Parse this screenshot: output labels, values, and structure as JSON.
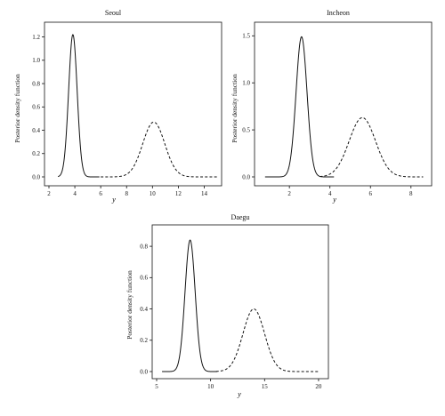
{
  "chart_data": [
    {
      "type": "line",
      "title": "Seoul",
      "xlabel": "y",
      "ylabel": "Posterior density function",
      "xlim": [
        2,
        15
      ],
      "ylim": [
        0,
        1.25
      ],
      "xticks": [
        2,
        4,
        6,
        8,
        10,
        12,
        14
      ],
      "yticks": [
        0.0,
        0.2,
        0.4,
        0.6,
        0.8,
        1.0,
        1.2
      ],
      "yticklabels": [
        "0.0",
        "0.2",
        "0.4",
        "0.6",
        "0.8",
        "1.0",
        "1.2"
      ],
      "series": [
        {
          "style": "solid",
          "curve": "normal",
          "peak_x": 3.85,
          "peak_y": 1.22,
          "sd": 0.33,
          "x_range": [
            2.7,
            5.9
          ]
        },
        {
          "style": "dashed",
          "curve": "normal",
          "peak_x": 10.1,
          "peak_y": 0.47,
          "sd": 0.85,
          "x_range": [
            6.0,
            15.0
          ]
        }
      ],
      "grid": false
    },
    {
      "type": "line",
      "title": "Incheon",
      "xlabel": "y",
      "ylabel": "Posterior density function",
      "xlim": [
        0.5,
        8.8
      ],
      "ylim": [
        0,
        1.55
      ],
      "xticks": [
        2,
        4,
        6,
        8
      ],
      "yticks": [
        0.0,
        0.5,
        1.0,
        1.5
      ],
      "yticklabels": [
        "0.0",
        "0.5",
        "1.0",
        "1.5"
      ],
      "series": [
        {
          "style": "solid",
          "curve": "normal",
          "peak_x": 2.6,
          "peak_y": 1.49,
          "sd": 0.27,
          "x_range": [
            0.8,
            4.2
          ]
        },
        {
          "style": "dashed",
          "curve": "normal",
          "peak_x": 5.6,
          "peak_y": 0.63,
          "sd": 0.65,
          "x_range": [
            3.5,
            8.6
          ]
        }
      ],
      "grid": false
    },
    {
      "type": "line",
      "title": "Daegu",
      "xlabel": "y",
      "ylabel": "Posterior density function",
      "xlim": [
        5,
        20.5
      ],
      "ylim": [
        0,
        0.88
      ],
      "xticks": [
        5,
        10,
        15,
        20
      ],
      "yticks": [
        0.0,
        0.2,
        0.4,
        0.6,
        0.8
      ],
      "yticklabels": [
        "0.0",
        "0.2",
        "0.4",
        "0.6",
        "0.8"
      ],
      "series": [
        {
          "style": "solid",
          "curve": "normal",
          "peak_x": 8.1,
          "peak_y": 0.84,
          "sd": 0.47,
          "x_range": [
            5.5,
            10.6
          ]
        },
        {
          "style": "dashed",
          "curve": "normal",
          "peak_x": 14.0,
          "peak_y": 0.4,
          "sd": 1.0,
          "x_range": [
            10.5,
            20.0
          ]
        }
      ],
      "grid": false
    }
  ]
}
